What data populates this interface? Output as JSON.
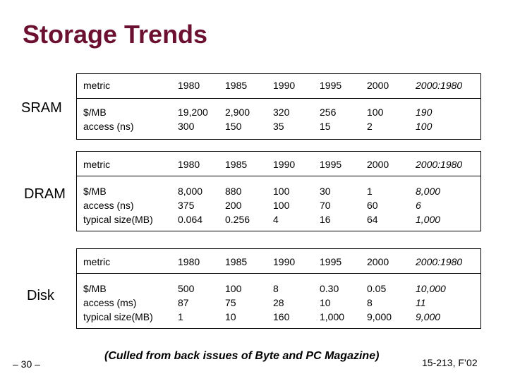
{
  "title": "Storage Trends",
  "columns": [
    "metric",
    "1980",
    "1985",
    "1990",
    "1995",
    "2000",
    "2000:1980"
  ],
  "sections": [
    {
      "label": "SRAM",
      "metrics": "$/MB\naccess (ns)",
      "c1980": "19,200\n300",
      "c1985": "2,900\n150",
      "c1990": "320\n35",
      "c1995": "256\n15",
      "c2000": "100\n2",
      "ratio": "190\n100"
    },
    {
      "label": "DRAM",
      "metrics": "$/MB\naccess (ns)\ntypical size(MB)",
      "c1980": "8,000\n375\n0.064",
      "c1985": "880\n200\n0.256",
      "c1990": "100\n100\n4",
      "c1995": "30\n70\n16",
      "c2000": "1\n60\n64",
      "ratio": "8,000\n6\n1,000"
    },
    {
      "label": "Disk",
      "metrics": "$/MB\naccess (ms)\ntypical size(MB)",
      "c1980": "500\n87\n1",
      "c1985": "100\n75\n10",
      "c1990": "8\n28\n160",
      "c1995": "0.30\n10\n1,000",
      "c2000": "0.05\n8\n9,000",
      "ratio": "10,000\n11\n9,000"
    }
  ],
  "footer": {
    "page": "– 30 –",
    "note": "(Culled from back issues of Byte and PC Magazine)",
    "course": "15-213, F’02"
  }
}
